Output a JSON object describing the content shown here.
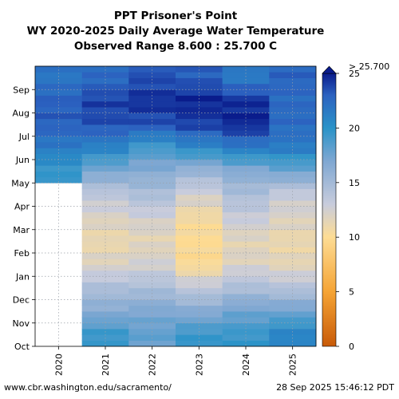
{
  "chart_data": {
    "type": "heatmap",
    "title": [
      "PPT Prisoner's Point",
      "WY 2020-2025 Daily Average Water Temperature",
      "Observed Range 8.600 : 25.700 C"
    ],
    "x_categories": [
      "2020",
      "2021",
      "2022",
      "2023",
      "2024",
      "2025"
    ],
    "y_ticks": [
      "Oct",
      "Nov",
      "Dec",
      "Jan",
      "Feb",
      "Mar",
      "Apr",
      "May",
      "Jun",
      "Jul",
      "Aug",
      "Sep"
    ],
    "colorbar": {
      "ticks": [
        0,
        5,
        10,
        15,
        20,
        25
      ],
      "range": [
        0,
        25
      ],
      "over_label": "> 25.700",
      "stops": [
        {
          "v": 0,
          "color": "#c85a08"
        },
        {
          "v": 5,
          "color": "#f5a435"
        },
        {
          "v": 10,
          "color": "#fddc94"
        },
        {
          "v": 13,
          "color": "#c8ccdc"
        },
        {
          "v": 17,
          "color": "#7ea7d2"
        },
        {
          "v": 20,
          "color": "#2a93c8"
        },
        {
          "v": 23,
          "color": "#2c62c0"
        },
        {
          "v": 25,
          "color": "#0a1c8c"
        }
      ]
    },
    "monthly_mean_temperature_c": [
      {
        "year": "2020",
        "values": [
          null,
          null,
          null,
          null,
          null,
          null,
          null,
          19.5,
          21.5,
          23.0,
          23.0,
          21.8
        ]
      },
      {
        "year": "2021",
        "values": [
          19.5,
          16.5,
          14.5,
          12.0,
          11.0,
          12.0,
          13.5,
          17.0,
          21.0,
          23.5,
          24.0,
          22.5
        ]
      },
      {
        "year": "2022",
        "values": [
          18.0,
          17.0,
          14.5,
          12.5,
          11.5,
          12.5,
          14.5,
          16.5,
          19.0,
          23.5,
          24.5,
          23.5
        ]
      },
      {
        "year": "2023",
        "values": [
          19.5,
          16.5,
          13.5,
          10.0,
          10.0,
          10.5,
          12.5,
          15.5,
          20.5,
          24.0,
          24.8,
          23.0
        ]
      },
      {
        "year": "2024",
        "values": [
          19.5,
          17.5,
          14.5,
          12.0,
          11.5,
          13.0,
          14.5,
          16.5,
          21.5,
          24.8,
          24.5,
          21.5
        ]
      },
      {
        "year": "2025",
        "values": [
          21.0,
          17.5,
          14.0,
          11.5,
          11.0,
          12.0,
          13.0,
          17.5,
          21.5,
          22.5,
          22.5,
          22.8
        ]
      }
    ],
    "missing_data_color": "#ffffff"
  },
  "footer": {
    "left": "www.cbr.washington.edu/sacramento/",
    "right": "28 Sep 2025 15:46:12 PDT"
  }
}
